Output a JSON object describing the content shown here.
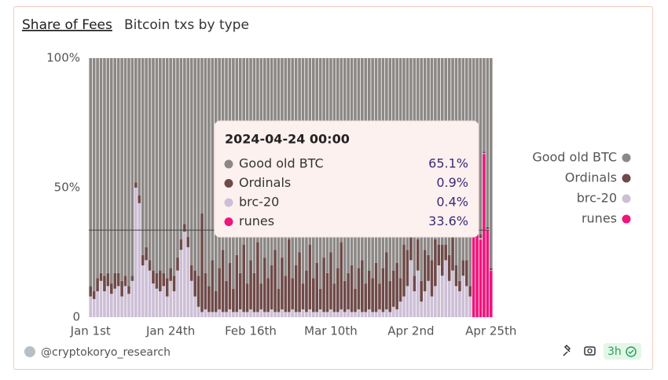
{
  "header": {
    "tab": "Share of Fees",
    "subtitle": "Bitcoin txs by type"
  },
  "footer": {
    "author": "@cryptokoryo_research",
    "age": "3h"
  },
  "chart_data": {
    "type": "bar",
    "stacked": true,
    "legend": "right",
    "ylim": [
      0,
      100
    ],
    "yticks": [
      {
        "value": 0,
        "label": "0"
      },
      {
        "value": 50,
        "label": "50%"
      },
      {
        "value": 100,
        "label": "100%"
      }
    ],
    "categories": [
      "Jan 1st",
      null,
      null,
      null,
      null,
      null,
      null,
      null,
      null,
      null,
      null,
      null,
      null,
      null,
      null,
      null,
      null,
      null,
      null,
      null,
      null,
      null,
      null,
      "Jan 24th",
      null,
      null,
      null,
      null,
      null,
      null,
      null,
      null,
      null,
      null,
      null,
      null,
      null,
      null,
      null,
      null,
      null,
      null,
      null,
      null,
      null,
      null,
      "Feb 16th",
      null,
      null,
      null,
      null,
      null,
      null,
      null,
      null,
      null,
      null,
      null,
      null,
      null,
      null,
      null,
      null,
      null,
      null,
      null,
      null,
      null,
      null,
      "Mar 10th",
      null,
      null,
      null,
      null,
      null,
      null,
      null,
      null,
      null,
      null,
      null,
      null,
      null,
      null,
      null,
      null,
      null,
      null,
      null,
      null,
      null,
      null,
      "Apr 2nd",
      null,
      null,
      null,
      null,
      null,
      null,
      null,
      null,
      null,
      null,
      null,
      null,
      null,
      null,
      null,
      null,
      null,
      null,
      null,
      null,
      null,
      null,
      "Apr 25th"
    ],
    "series": [
      {
        "name": "Good old BTC",
        "color": "#8c8886",
        "values": [
          88,
          90,
          85,
          83,
          84,
          83,
          87,
          83,
          83,
          86,
          84,
          88,
          84,
          48,
          53,
          76,
          73,
          78,
          82,
          83,
          82,
          83,
          85,
          81,
          84,
          77,
          70,
          64,
          69,
          80,
          82,
          84,
          60,
          83,
          88,
          78,
          90,
          81,
          74,
          86,
          79,
          89,
          76,
          83,
          72,
          87,
          78,
          83,
          71,
          87,
          77,
          85,
          80,
          74,
          89,
          77,
          84,
          70,
          85,
          80,
          75,
          87,
          82,
          72,
          85,
          79,
          89,
          77,
          83,
          75,
          87,
          81,
          71,
          86,
          83,
          80,
          89,
          81,
          78,
          87,
          82,
          85,
          79,
          87,
          81,
          75,
          86,
          82,
          79,
          85,
          72,
          74,
          68,
          84,
          70,
          86,
          74,
          76,
          78,
          70,
          72,
          72,
          72,
          76,
          68,
          80,
          86,
          78,
          78,
          88,
          61.5,
          62.5,
          68,
          36.2,
          65.1,
          81
        ]
      },
      {
        "name": "Ordinals",
        "color": "#6e4a48",
        "values": [
          4,
          3,
          5,
          3,
          6,
          5,
          4,
          6,
          5,
          6,
          4,
          3,
          2,
          2,
          3,
          4,
          5,
          4,
          5,
          6,
          8,
          5,
          7,
          5,
          6,
          5,
          4,
          3,
          4,
          6,
          10,
          12,
          38,
          14,
          10,
          20,
          8,
          16,
          24,
          12,
          18,
          9,
          22,
          14,
          26,
          11,
          19,
          15,
          27,
          10,
          21,
          13,
          17,
          24,
          9,
          20,
          14,
          28,
          12,
          18,
          23,
          10,
          16,
          25,
          13,
          19,
          8,
          21,
          15,
          22,
          11,
          17,
          26,
          12,
          14,
          18,
          9,
          16,
          20,
          11,
          15,
          13,
          19,
          10,
          17,
          22,
          12,
          14,
          18,
          9,
          20,
          14,
          10,
          6,
          12,
          8,
          16,
          10,
          14,
          18,
          8,
          12,
          6,
          10,
          14,
          8,
          4,
          6,
          10,
          4,
          1,
          1,
          1.5,
          0.5,
          0.9,
          0.8
        ]
      },
      {
        "name": "brc-20",
        "color": "#cdbfd6",
        "values": [
          8,
          7,
          10,
          14,
          10,
          12,
          9,
          11,
          12,
          8,
          12,
          9,
          14,
          50,
          44,
          20,
          22,
          18,
          13,
          11,
          10,
          12,
          8,
          14,
          10,
          18,
          26,
          33,
          27,
          14,
          8,
          4,
          2,
          3,
          2,
          2,
          2,
          3,
          2,
          2,
          3,
          2,
          2,
          3,
          2,
          2,
          3,
          2,
          2,
          3,
          2,
          2,
          3,
          2,
          2,
          3,
          2,
          2,
          3,
          2,
          2,
          3,
          2,
          3,
          2,
          2,
          3,
          2,
          2,
          3,
          2,
          2,
          3,
          2,
          3,
          2,
          2,
          3,
          2,
          2,
          3,
          2,
          2,
          3,
          2,
          3,
          2,
          4,
          3,
          6,
          8,
          12,
          22,
          10,
          18,
          6,
          10,
          14,
          8,
          12,
          20,
          16,
          22,
          14,
          18,
          12,
          10,
          16,
          12,
          8,
          0.5,
          0.5,
          0.5,
          0.3,
          0.4,
          0.2
        ]
      },
      {
        "name": "runes",
        "color": "#f0147c",
        "values": [
          0,
          0,
          0,
          0,
          0,
          0,
          0,
          0,
          0,
          0,
          0,
          0,
          0,
          0,
          0,
          0,
          0,
          0,
          0,
          0,
          0,
          0,
          0,
          0,
          0,
          0,
          0,
          0,
          0,
          0,
          0,
          0,
          0,
          0,
          0,
          0,
          0,
          0,
          0,
          0,
          0,
          0,
          0,
          0,
          0,
          0,
          0,
          0,
          0,
          0,
          0,
          0,
          0,
          0,
          0,
          0,
          0,
          0,
          0,
          0,
          0,
          0,
          0,
          0,
          0,
          0,
          0,
          0,
          0,
          0,
          0,
          0,
          0,
          0,
          0,
          0,
          0,
          0,
          0,
          0,
          0,
          0,
          0,
          0,
          0,
          0,
          0,
          0,
          0,
          0,
          0,
          0,
          0,
          0,
          0,
          0,
          0,
          0,
          0,
          0,
          0,
          0,
          0,
          0,
          0,
          0,
          0,
          0,
          0,
          0,
          37,
          36,
          30,
          63,
          33.6,
          18
        ]
      }
    ],
    "tooltip": {
      "title": "2024-04-24 00:00",
      "items": [
        {
          "name": "Good old BTC",
          "label": "65.1%"
        },
        {
          "name": "Ordinals",
          "label": "0.9%"
        },
        {
          "name": "brc-20",
          "label": "0.4%"
        },
        {
          "name": "runes",
          "label": "33.6%"
        }
      ]
    }
  }
}
